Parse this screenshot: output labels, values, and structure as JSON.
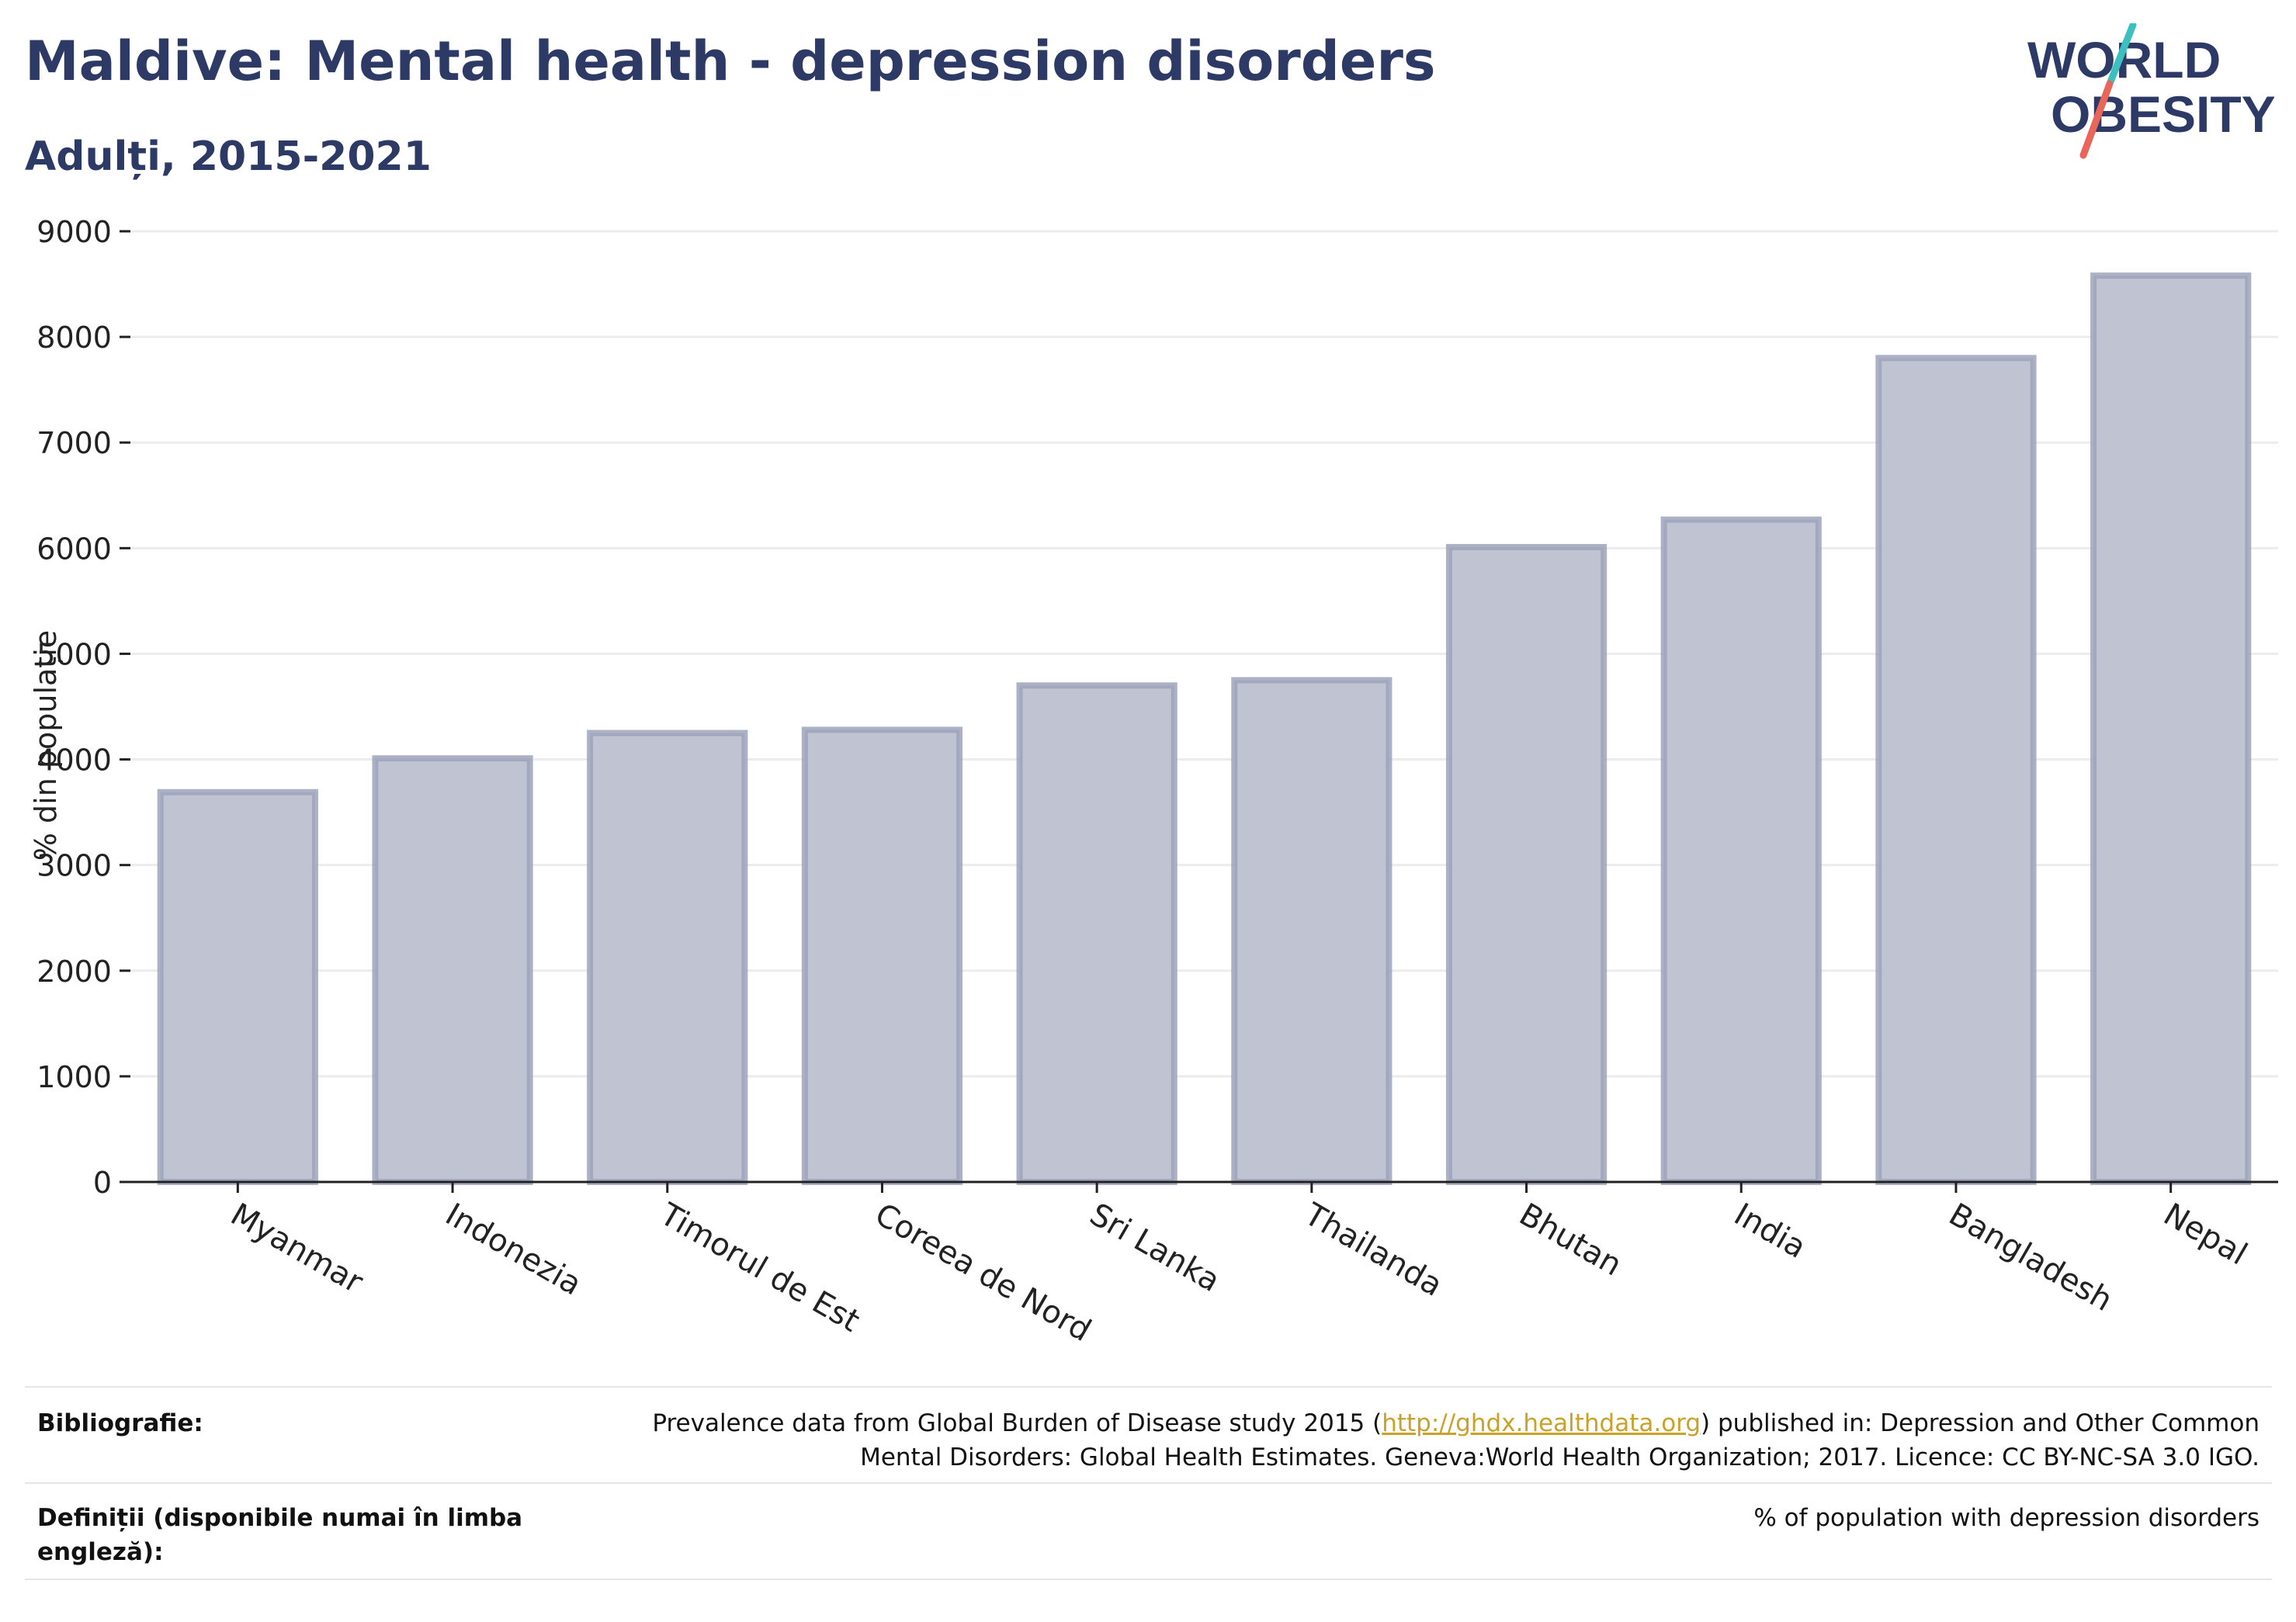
{
  "header": {
    "title": "Maldive: Mental health - depression disorders",
    "subtitle": "Adulți, 2015-2021"
  },
  "logo": {
    "line1": "WORLD",
    "line2": "OBESITY",
    "color_text": "#2d3a66",
    "color_teal": "#3bbfbf",
    "color_red": "#e8665a"
  },
  "chart_data": {
    "type": "bar",
    "categories": [
      "Myanmar",
      "Indonezia",
      "Timorul de Est",
      "Coreea de Nord",
      "Sri Lanka",
      "Thailanda",
      "Bhutan",
      "India",
      "Bangladesh",
      "Nepal"
    ],
    "values": [
      3690,
      4010,
      4250,
      4280,
      4700,
      4750,
      6010,
      6270,
      7800,
      8580
    ],
    "ylabel": "% din populație",
    "ylim": [
      0,
      9000
    ],
    "yticks": [
      0,
      1000,
      2000,
      3000,
      4000,
      5000,
      6000,
      7000,
      8000,
      9000
    ],
    "grid": true,
    "bar_fill": "#c0c4d2",
    "bar_stroke": "#9ea3bb"
  },
  "footer": {
    "bibliography_label": "Bibliografie:",
    "bibliography_pre": "Prevalence data from Global Burden of Disease study 2015 (",
    "bibliography_link": "http://ghdx.healthdata.org",
    "bibliography_post": ") published in: Depression and Other Common",
    "bibliography_line2": "Mental Disorders: Global Health Estimates. Geneva:World Health Organization; 2017. Licence: CC BY-NC-SA 3.0 IGO.",
    "definitions_label": "Definiții (disponibile numai în limba engleză):",
    "definitions_value": "% of population with depression disorders"
  }
}
